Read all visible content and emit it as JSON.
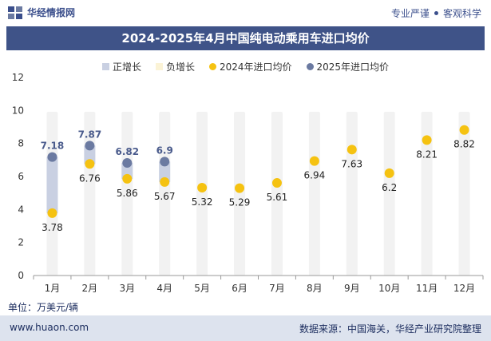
{
  "header": {
    "brand": "华经情报网",
    "tag_left": "专业严谨",
    "tag_right": "客观科学"
  },
  "title": "2024-2025年4月中国纯电动乘用车进口均价",
  "legend": [
    {
      "label": "正增长",
      "color": "#c9d0e2",
      "shape": "rect"
    },
    {
      "label": "负增长",
      "color": "#fbf3d6",
      "shape": "rect"
    },
    {
      "label": "2024年进口均价",
      "color": "#f5c211",
      "shape": "dot"
    },
    {
      "label": "2025年进口均价",
      "color": "#6b7aa1",
      "shape": "dot"
    }
  ],
  "unit_label": "单位：万美元/辆",
  "footer": {
    "url": "www.huaon.com",
    "source": "数据来源：中国海关，华经产业研究院整理"
  },
  "chart_data": {
    "type": "scatter",
    "categories": [
      "1月",
      "2月",
      "3月",
      "4月",
      "5月",
      "6月",
      "7月",
      "8月",
      "9月",
      "10月",
      "11月",
      "12月"
    ],
    "series": [
      {
        "name": "2024年进口均价",
        "color": "#f5c211",
        "values": [
          3.78,
          6.76,
          5.86,
          5.67,
          5.32,
          5.29,
          5.61,
          6.94,
          7.63,
          6.2,
          8.21,
          8.82
        ]
      },
      {
        "name": "2025年进口均价",
        "color": "#6b7aa1",
        "values": [
          7.18,
          7.87,
          6.82,
          6.9,
          null,
          null,
          null,
          null,
          null,
          null,
          null,
          null
        ]
      }
    ],
    "bar_color_positive": "#c9d0e2",
    "bar_color_background": "#f2f2f2",
    "yticks": [
      0,
      2,
      4,
      6,
      8,
      10,
      12
    ],
    "ylim": [
      0,
      12
    ],
    "grid": false
  }
}
